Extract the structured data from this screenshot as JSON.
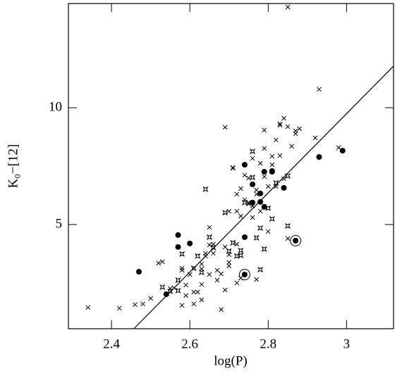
{
  "chart_data": {
    "type": "scatter",
    "x_label": "log(P)",
    "y_label": "K₀−[12]",
    "xlim": [
      2.29,
      3.12
    ],
    "ylim": [
      0.54,
      14.46
    ],
    "xticks": [
      2.4,
      2.6,
      2.8,
      3
    ],
    "yticks": [
      5,
      10
    ],
    "color": "#000000",
    "series": [
      {
        "marker": "cross",
        "color": "#000000",
        "x": [
          2.34,
          2.42,
          2.46,
          2.48,
          2.5,
          2.52,
          2.53,
          2.55,
          2.56,
          2.58,
          2.58,
          2.59,
          2.59,
          2.6,
          2.61,
          2.62,
          2.63,
          2.63,
          2.63,
          2.64,
          2.64,
          2.65,
          2.65,
          2.66,
          2.66,
          2.67,
          2.67,
          2.68,
          2.68,
          2.69,
          2.69,
          2.7,
          2.7,
          2.7,
          2.71,
          2.71,
          2.72,
          2.72,
          2.72,
          2.72,
          2.73,
          2.73,
          2.74,
          2.74,
          2.75,
          2.75,
          2.76,
          2.76,
          2.76,
          2.77,
          2.77,
          2.78,
          2.78,
          2.79,
          2.79,
          2.79,
          2.8,
          2.8,
          2.81,
          2.81,
          2.82,
          2.82,
          2.83,
          2.83,
          2.83,
          2.84,
          2.84,
          2.85,
          2.85,
          2.85,
          2.86,
          2.87,
          2.87,
          2.88,
          2.92,
          2.93,
          2.98,
          2.58,
          2.63,
          2.65,
          2.69,
          2.7,
          2.73,
          2.75,
          2.77,
          2.61
        ],
        "values": [
          1.45,
          1.42,
          1.57,
          1.6,
          1.84,
          3.35,
          3.41,
          2.26,
          2.29,
          3.04,
          1.54,
          1.96,
          2.41,
          2.86,
          1.6,
          2.11,
          2.44,
          1.78,
          3.1,
          3.65,
          3.77,
          4.88,
          2.86,
          3.77,
          4.16,
          3.04,
          2.62,
          1.36,
          2.89,
          9.16,
          4.04,
          3.71,
          5.57,
          3.23,
          7.41,
          7.44,
          2.5,
          4.16,
          5.57,
          6.3,
          5.36,
          6.54,
          7.11,
          6.06,
          5.88,
          5.94,
          7.83,
          5.3,
          5.79,
          6.3,
          6.48,
          7.62,
          5.57,
          7.05,
          9.04,
          8.26,
          4.7,
          6.63,
          7.92,
          7.56,
          8.62,
          6.63,
          9.25,
          9.31,
          7.95,
          6.96,
          9.55,
          4.4,
          14.31,
          9.19,
          8.35,
          8.89,
          9.01,
          9.1,
          8.71,
          10.79,
          8.29,
          3.13,
          3.31,
          4.13,
          2.2,
          3.38,
          2.71,
          6.99,
          2.65,
          2.11
        ]
      },
      {
        "marker": "star",
        "color": "#000000",
        "x": [
          2.53,
          2.55,
          2.57,
          2.57,
          2.58,
          2.61,
          2.62,
          2.63,
          2.64,
          2.66,
          2.69,
          2.7,
          2.71,
          2.72,
          2.73,
          2.74,
          2.76,
          2.76,
          2.77,
          2.78,
          2.78,
          2.79,
          2.8,
          2.81,
          2.82,
          2.85,
          2.85,
          2.65,
          2.73
        ],
        "values": [
          2.32,
          2.14,
          2.17,
          2.62,
          3.74,
          3.13,
          3.65,
          2.95,
          6.51,
          4.01,
          5.51,
          3.86,
          4.22,
          3.65,
          3.89,
          5.94,
          8.13,
          7.02,
          4.43,
          3.07,
          4.85,
          3.95,
          5.7,
          5.24,
          6.78,
          4.94,
          7.08,
          4.46,
          3.68
        ]
      },
      {
        "marker": "dot",
        "color": "#000000",
        "x": [
          2.47,
          2.54,
          2.57,
          2.57,
          2.6,
          2.74,
          2.74,
          2.76,
          2.76,
          2.79,
          2.78,
          2.78,
          2.79,
          2.81,
          2.81,
          2.84,
          2.93,
          2.99
        ],
        "values": [
          2.98,
          2.02,
          4.55,
          4.04,
          4.19,
          4.46,
          7.56,
          5.94,
          6.72,
          7.26,
          6.33,
          5.97,
          5.76,
          7.26,
          7.29,
          6.57,
          7.89,
          8.16
        ]
      },
      {
        "marker": "ringed-dot",
        "color": "#000000",
        "x": [
          2.74,
          2.87
        ],
        "values": [
          2.86,
          4.31
        ]
      },
      {
        "marker": "line",
        "color": "#000000",
        "x": [
          2.457,
          3.12
        ],
        "values": [
          0.54,
          11.78
        ]
      }
    ]
  }
}
